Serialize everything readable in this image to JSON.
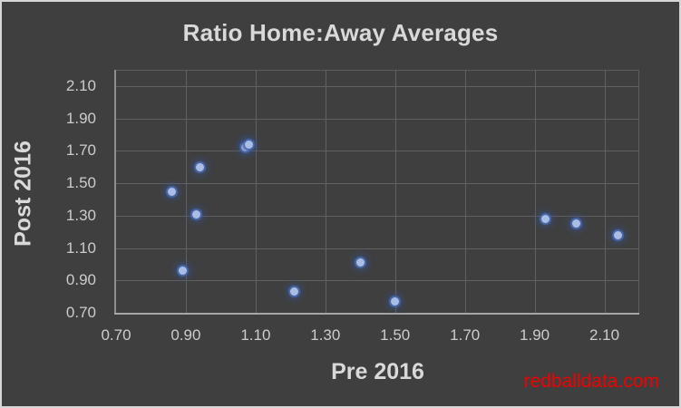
{
  "chart_data": {
    "type": "scatter",
    "title": "Ratio Home:Away Averages",
    "xlabel": "Pre 2016",
    "ylabel": "Post 2016",
    "xlim": [
      0.7,
      2.2
    ],
    "ylim": [
      0.7,
      2.2
    ],
    "grid": true,
    "legend": "none",
    "x_ticks": [
      0.7,
      0.9,
      1.1,
      1.3,
      1.5,
      1.7,
      1.9,
      2.1
    ],
    "x_tick_labels": [
      "0.70",
      "0.90",
      "1.10",
      "1.30",
      "1.50",
      "1.70",
      "1.90",
      "2.10"
    ],
    "y_ticks": [
      0.7,
      0.9,
      1.1,
      1.3,
      1.5,
      1.7,
      1.9,
      2.1
    ],
    "y_tick_labels": [
      "0.70",
      "0.90",
      "1.10",
      "1.30",
      "1.50",
      "1.70",
      "1.90",
      "2.10"
    ],
    "points": [
      {
        "x": 0.86,
        "y": 1.45
      },
      {
        "x": 0.89,
        "y": 0.96
      },
      {
        "x": 0.93,
        "y": 1.31
      },
      {
        "x": 0.94,
        "y": 1.6
      },
      {
        "x": 1.07,
        "y": 1.72
      },
      {
        "x": 1.08,
        "y": 1.74
      },
      {
        "x": 1.21,
        "y": 0.83
      },
      {
        "x": 1.4,
        "y": 1.01
      },
      {
        "x": 1.5,
        "y": 0.77
      },
      {
        "x": 1.93,
        "y": 1.28
      },
      {
        "x": 2.02,
        "y": 1.25
      },
      {
        "x": 2.14,
        "y": 1.18
      }
    ]
  },
  "watermark": {
    "text": "redballdata.com",
    "color": "#f20000"
  },
  "colors": {
    "background": "#3f3f3f",
    "frame_border": "#d6d6d6",
    "gridline": "#606060",
    "axis_line": "#a6a6a6",
    "title_text": "#d9d9d9",
    "tick_text": "#cccccc",
    "marker_fill": "#a9bde5",
    "marker_glow": "#4472c4"
  }
}
